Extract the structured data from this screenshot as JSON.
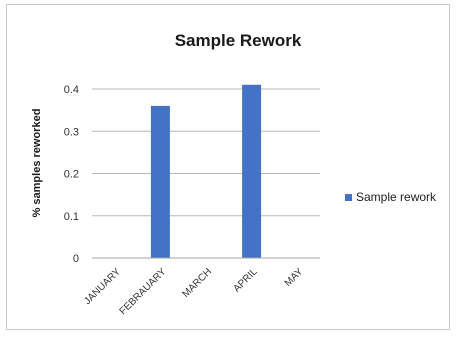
{
  "chart_data": {
    "type": "bar",
    "title": "Sample Rework",
    "ylabel": "% samples reworked",
    "xlabel": "",
    "categories": [
      "JANUARY",
      "FEBRAUARY",
      "MARCH",
      "APRIL",
      "MAY"
    ],
    "series": [
      {
        "name": "Sample rework",
        "values": [
          0,
          0.36,
          0,
          0.41,
          0
        ],
        "color": "#4472c4"
      }
    ],
    "ylim": [
      0,
      0.4
    ],
    "yticks": [
      "0",
      "0.1",
      "0.2",
      "0.3",
      "0.4"
    ],
    "ytick_values": [
      0,
      0.1,
      0.2,
      0.3,
      0.4
    ],
    "grid": true,
    "legend_position": "right"
  }
}
